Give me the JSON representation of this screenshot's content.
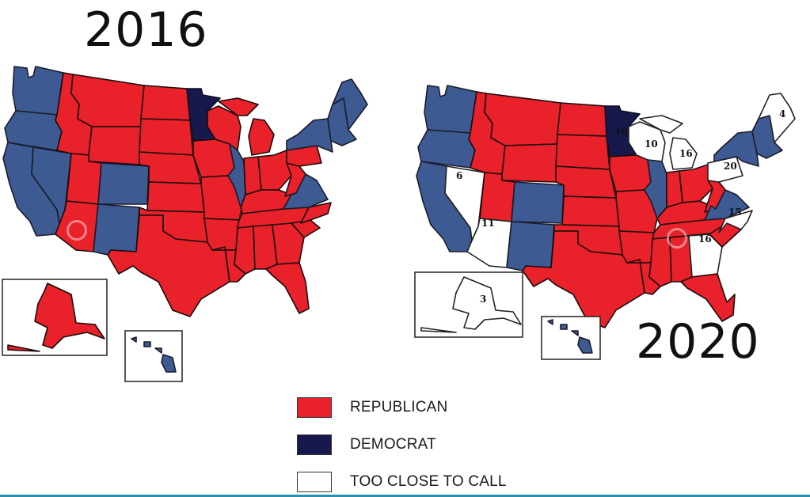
{
  "titles": {
    "left_year": "2016",
    "right_year": "2020"
  },
  "colors": {
    "republican": "#e8212a",
    "democrat_light": "#3d5a92",
    "democrat_dark": "#17184c",
    "too_close": "#ffffff"
  },
  "legend": [
    {
      "label": "REPUBLICAN",
      "color": "#e8212a"
    },
    {
      "label": "DEMOCRAT",
      "color": "#17184c"
    },
    {
      "label": "TOO CLOSE TO CALL",
      "color": "#ffffff"
    }
  ],
  "map_2016": {
    "state_colors": {
      "washington": "democrat",
      "oregon": "democrat",
      "california": "democrat",
      "nevada": "democrat",
      "idaho": "republican",
      "montana": "republican",
      "wyoming": "republican",
      "utah": "republican",
      "colorado": "democrat",
      "arizona": "republican",
      "new_mexico": "democrat",
      "north_dakota": "republican",
      "south_dakota": "republican",
      "nebraska": "republican",
      "kansas": "republican",
      "oklahoma": "republican",
      "texas": "republican",
      "minnesota": "democrat",
      "iowa": "republican",
      "missouri": "republican",
      "arkansas": "republican",
      "louisiana": "republican",
      "wisconsin": "republican",
      "illinois": "democrat",
      "michigan": "republican",
      "indiana": "republican",
      "ohio": "republican",
      "kentucky": "republican",
      "tennessee": "republican",
      "mississippi": "republican",
      "alabama": "republican",
      "georgia": "republican",
      "florida": "republican",
      "south_carolina": "republican",
      "north_carolina": "republican",
      "virginia": "democrat",
      "west_virginia": "republican",
      "pennsylvania": "republican",
      "new_york": "democrat",
      "new_england": "democrat",
      "maine": "democrat",
      "alaska": "republican",
      "hawaii": "democrat"
    }
  },
  "map_2020": {
    "state_colors": {
      "washington": "democrat",
      "oregon": "democrat",
      "california": "democrat",
      "nevada": "too_close",
      "idaho": "republican",
      "montana": "republican",
      "wyoming": "republican",
      "utah": "republican",
      "colorado": "democrat",
      "arizona": "too_close",
      "new_mexico": "democrat",
      "north_dakota": "republican",
      "south_dakota": "republican",
      "nebraska": "republican",
      "kansas": "republican",
      "oklahoma": "republican",
      "texas": "republican",
      "minnesota": "democrat",
      "iowa": "republican",
      "missouri": "republican",
      "arkansas": "republican",
      "louisiana": "republican",
      "wisconsin": "too_close",
      "illinois": "democrat",
      "michigan": "too_close",
      "indiana": "republican",
      "ohio": "republican",
      "kentucky": "republican",
      "tennessee": "republican",
      "mississippi": "republican",
      "alabama": "republican",
      "georgia": "too_close",
      "florida": "republican",
      "south_carolina": "republican",
      "north_carolina": "too_close",
      "virginia": "democrat",
      "west_virginia": "republican",
      "pennsylvania": "too_close",
      "new_york": "democrat",
      "new_england": "democrat",
      "maine": "too_close",
      "alaska": "too_close",
      "hawaii": "democrat"
    },
    "electoral_votes": {
      "nevada": "6",
      "arizona": "11",
      "minnesota": "10",
      "wisconsin": "10",
      "michigan": "16",
      "pennsylvania": "20",
      "north_carolina": "15",
      "georgia": "16",
      "maine": "4",
      "alaska": "3"
    }
  }
}
